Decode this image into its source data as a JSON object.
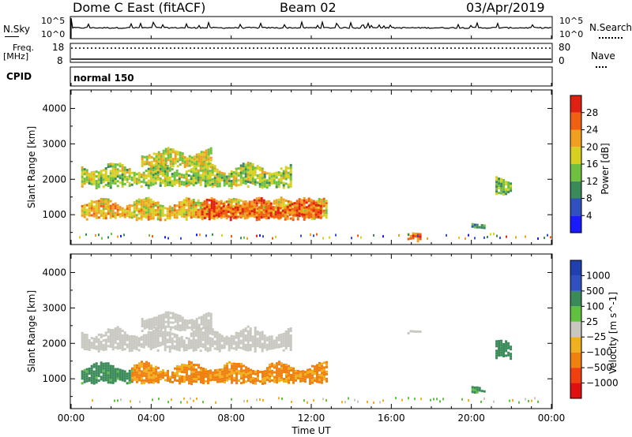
{
  "header": {
    "radar": "Dome C East (fitACF)",
    "beam": "Beam 02",
    "date": "03/Apr/2019"
  },
  "top_panels": {
    "nsky_label": "N.Sky",
    "nsky_ticks": [
      "10^5",
      "10^0"
    ],
    "nsearch_label": "N.Search",
    "nsearch_ticks": [
      "10^5",
      "10^0"
    ],
    "freq_label_line1": "Freq.",
    "freq_label_line2": "[MHz]",
    "freq_ticks": [
      "18",
      "8"
    ],
    "nave_label": "Nave",
    "nave_ticks": [
      "80",
      "0"
    ],
    "cpid_label": "CPID",
    "cpid_value": "normal 150"
  },
  "colors": {
    "power_scale": [
      "#1a1aff",
      "#3050c0",
      "#3a8a5a",
      "#70c040",
      "#d8d020",
      "#f0a020",
      "#f06010",
      "#e02010"
    ],
    "velocity_scale": [
      "#e01010",
      "#f04010",
      "#f08010",
      "#f0b020",
      "#c8c8c0",
      "#60c040",
      "#3a8a5a",
      "#3050c0",
      "#2040b0"
    ]
  },
  "chart_data": [
    {
      "type": "heatmap",
      "name": "Power",
      "ylabel": "Slant Range [km]",
      "yticks": [
        "4000",
        "3000",
        "2000",
        "1000"
      ],
      "ylim": [
        180,
        4500
      ],
      "xlim": [
        0,
        24
      ],
      "colorbar_label": "Power [dB]",
      "colorbar_ticks": [
        "28",
        "24",
        "20",
        "16",
        "12",
        "8",
        "4"
      ],
      "colorbar_range": [
        0,
        32
      ],
      "regions": [
        {
          "t": [
            0.5,
            11.0
          ],
          "r": [
            1700,
            2500
          ],
          "value": 16
        },
        {
          "t": [
            3.5,
            7.0
          ],
          "r": [
            2300,
            2900
          ],
          "value": 18
        },
        {
          "t": [
            0.5,
            12.8
          ],
          "r": [
            800,
            1500
          ],
          "value": 20
        },
        {
          "t": [
            6.5,
            12.5
          ],
          "r": [
            800,
            1500
          ],
          "value": 26
        },
        {
          "t": [
            16.8,
            17.5
          ],
          "r": [
            250,
            500
          ],
          "value": 26
        },
        {
          "t": [
            21.2,
            22.0
          ],
          "r": [
            1500,
            2100
          ],
          "value": 14
        },
        {
          "t": [
            20.0,
            20.6
          ],
          "r": [
            600,
            800
          ],
          "value": 12
        }
      ]
    },
    {
      "type": "heatmap",
      "name": "Velocity",
      "ylabel": "Slant Range [km]",
      "yticks": [
        "4000",
        "3000",
        "2000",
        "1000"
      ],
      "ylim": [
        180,
        4500
      ],
      "xlim": [
        0,
        24
      ],
      "xticks": [
        "00:00",
        "04:00",
        "08:00",
        "12:00",
        "16:00",
        "20:00",
        "00:00"
      ],
      "xlabel": "Time UT",
      "colorbar_label": "Velocity [m s^-1]",
      "colorbar_ticks": [
        "1000",
        "500",
        "100",
        "25",
        "−25",
        "−100",
        "−500",
        "−1000"
      ],
      "regions": [
        {
          "t": [
            0.5,
            11.0
          ],
          "r": [
            1700,
            2500
          ],
          "value": 0
        },
        {
          "t": [
            3.5,
            7.0
          ],
          "r": [
            2300,
            2900
          ],
          "value": 0
        },
        {
          "t": [
            0.5,
            3.0
          ],
          "r": [
            800,
            1500
          ],
          "value": 150
        },
        {
          "t": [
            3.0,
            12.8
          ],
          "r": [
            800,
            1500
          ],
          "value": -120
        },
        {
          "t": [
            21.2,
            22.0
          ],
          "r": [
            1500,
            2100
          ],
          "value": 200
        },
        {
          "t": [
            20.0,
            20.6
          ],
          "r": [
            600,
            800
          ],
          "value": 150
        },
        {
          "t": [
            16.8,
            17.5
          ],
          "r": [
            2300,
            2400
          ],
          "value": 0
        }
      ]
    }
  ]
}
